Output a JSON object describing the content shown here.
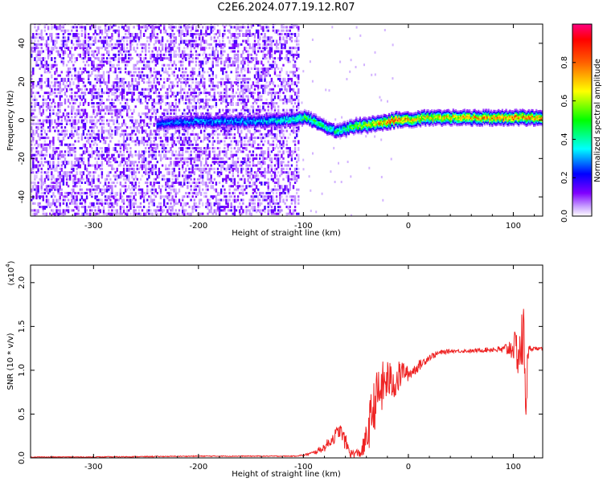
{
  "title": "C2E6.2024.077.19.12.R07",
  "chart_data": [
    {
      "type": "heatmap",
      "xlabel": "Height of straight line (km)",
      "ylabel": "Frequency (Hz)",
      "xlim": [
        -360,
        128
      ],
      "ylim": [
        -50,
        50
      ],
      "xticks": [
        -300,
        -200,
        -100,
        0,
        100
      ],
      "yticks": [
        -40,
        -20,
        0,
        20,
        40
      ],
      "colorbar": {
        "label": "Normalized spectral amplitude",
        "range": [
          0,
          1
        ],
        "ticks": [
          "0.0",
          "0.2",
          "0.4",
          "0.6",
          "0.8"
        ],
        "tick_values": [
          0,
          0.2,
          0.4,
          0.6,
          0.8
        ],
        "colors": [
          "#ffffff",
          "#8000ff",
          "#0000ff",
          "#00ffff",
          "#00ff00",
          "#ffff00",
          "#ff8000",
          "#ff0000",
          "#ff0080"
        ]
      },
      "noise_region_x": [
        -360,
        -105
      ],
      "ridge": {
        "x": [
          -240,
          -200,
          -150,
          -110,
          -100,
          -90,
          -80,
          -70,
          -60,
          -50,
          -40,
          -30,
          -20,
          -10,
          0,
          20,
          60,
          100,
          128
        ],
        "freq": [
          -2,
          -1,
          -1,
          0,
          1,
          -1,
          -4,
          -6,
          -5,
          -3,
          -3,
          -2,
          -1,
          0,
          0,
          1,
          1,
          1,
          1
        ],
        "peak_amplitude": [
          0.25,
          0.3,
          0.3,
          0.4,
          0.45,
          0.45,
          0.4,
          0.4,
          0.45,
          0.55,
          0.6,
          0.7,
          0.8,
          0.8,
          0.7,
          0.65,
          0.7,
          0.75,
          0.7
        ]
      }
    },
    {
      "type": "line",
      "xlabel": "Height of straight line (km)",
      "ylabel": "SNR (10 * v/v)",
      "y_multiplier_label": "(x10",
      "y_multiplier_exp": "4",
      "y_multiplier_close": ")",
      "xlim": [
        -360,
        128
      ],
      "ylim": [
        0,
        2.2
      ],
      "xticks": [
        -300,
        -200,
        -100,
        0,
        100
      ],
      "yticks": [
        "0.0",
        "0.5",
        "1.0",
        "1.5",
        "2.0"
      ],
      "ytick_values": [
        0,
        0.5,
        1.0,
        1.5,
        2.0
      ],
      "color": "#ee2222",
      "series": [
        {
          "x": [
            -360,
            -300,
            -200,
            -150,
            -110,
            -100,
            -90,
            -80,
            -70,
            -65,
            -60,
            -55,
            -50,
            -45,
            -40,
            -35,
            -30,
            -25,
            -20,
            -15,
            -10,
            -5,
            0,
            10,
            20,
            30,
            40,
            60,
            80,
            90,
            100,
            105,
            110,
            112,
            115,
            120,
            128
          ],
          "y": [
            0.01,
            0.01,
            0.02,
            0.02,
            0.02,
            0.03,
            0.06,
            0.12,
            0.25,
            0.32,
            0.18,
            0.05,
            0.05,
            0.06,
            0.2,
            0.5,
            0.7,
            0.8,
            0.9,
            0.85,
            0.9,
            1.0,
            0.95,
            1.05,
            1.15,
            1.2,
            1.22,
            1.22,
            1.24,
            1.23,
            1.27,
            1.2,
            1.35,
            0.75,
            1.25,
            1.25,
            1.24
          ],
          "noise_amplitude": [
            0.005,
            0.005,
            0.005,
            0.005,
            0.005,
            0.01,
            0.02,
            0.05,
            0.08,
            0.08,
            0.1,
            0.05,
            0.05,
            0.06,
            0.2,
            0.3,
            0.3,
            0.3,
            0.25,
            0.2,
            0.2,
            0.12,
            0.08,
            0.06,
            0.04,
            0.03,
            0.02,
            0.02,
            0.03,
            0.05,
            0.15,
            0.3,
            0.45,
            0.4,
            0.04,
            0.02,
            0.02
          ]
        }
      ]
    }
  ]
}
